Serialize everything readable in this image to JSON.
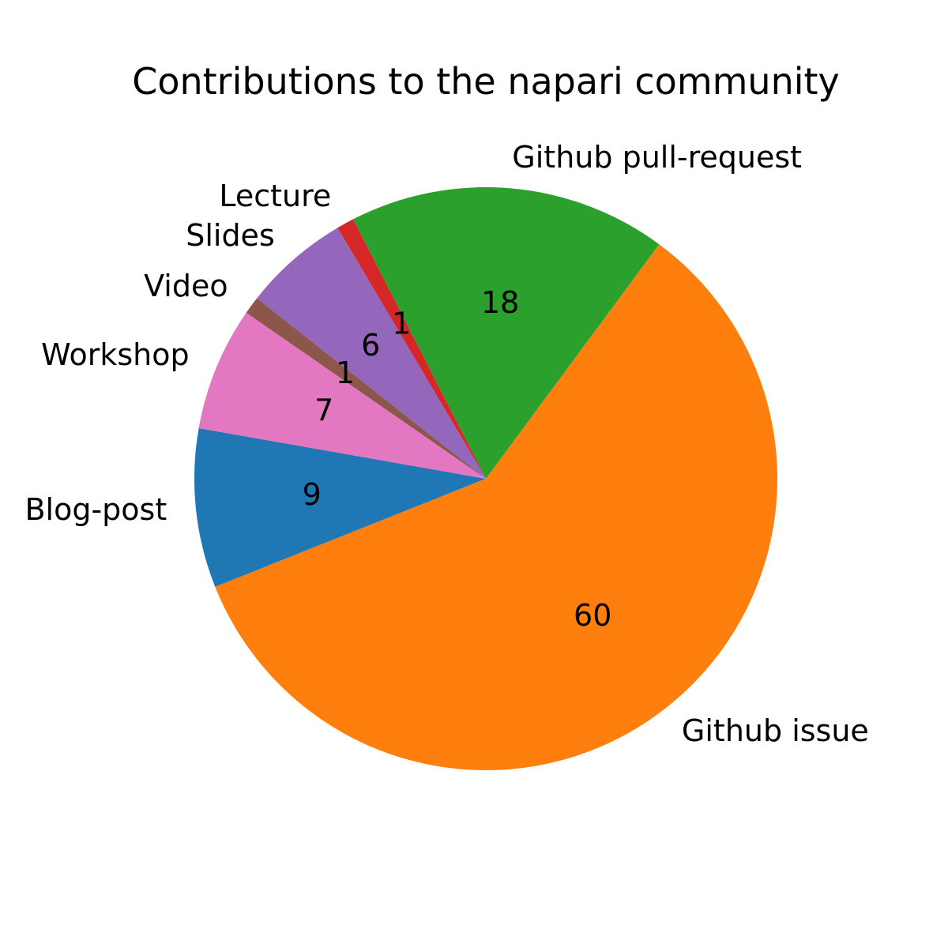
{
  "chart_data": {
    "type": "pie",
    "title": "Contributions to the napari community",
    "slices": [
      {
        "label": "Blog-post",
        "value": 9,
        "color": "#1f77b4"
      },
      {
        "label": "Github issue",
        "value": 60,
        "color": "#ff7f0e"
      },
      {
        "label": "Github pull-request",
        "value": 18,
        "color": "#2ca02c"
      },
      {
        "label": "Lecture",
        "value": 1,
        "color": "#d62728"
      },
      {
        "label": "Slides",
        "value": 6,
        "color": "#9467bd"
      },
      {
        "label": "Video",
        "value": 1,
        "color": "#8c564b"
      },
      {
        "label": "Workshop",
        "value": 7,
        "color": "#e377c2"
      }
    ],
    "start_angle_deg": 170,
    "direction": "counterclockwise",
    "value_labels_shown": true,
    "legend": "none"
  }
}
